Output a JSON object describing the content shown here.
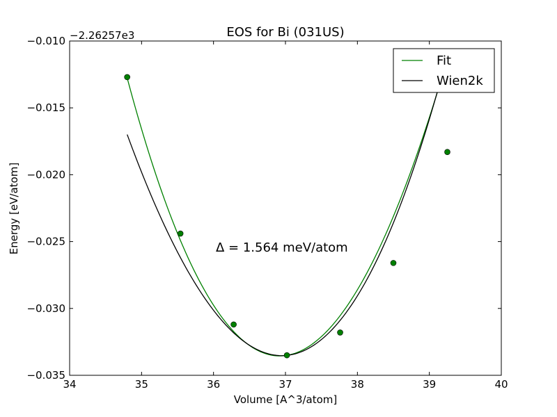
{
  "chart_data": {
    "type": "line",
    "title": "EOS for Bi (031US)",
    "xlabel": "Volume [A^3/atom]",
    "ylabel": "Energy [eV/atom]",
    "y_offset_label": "−2.26257e3",
    "xlim": [
      34,
      40
    ],
    "ylim": [
      -0.035,
      -0.01
    ],
    "x_ticks": [
      34,
      35,
      36,
      37,
      38,
      39,
      40
    ],
    "x_tick_labels": [
      "34",
      "35",
      "36",
      "37",
      "38",
      "39",
      "40"
    ],
    "y_ticks": [
      -0.01,
      -0.015,
      -0.02,
      -0.025,
      -0.03,
      -0.035
    ],
    "y_tick_labels": [
      "−0.010",
      "−0.015",
      "−0.020",
      "−0.025",
      "−0.030",
      "−0.035"
    ],
    "grid": false,
    "legend_position": "top-right",
    "annotation": "Δ = 1.564 meV/atom",
    "series": [
      {
        "name": "Fit",
        "color": "#008000",
        "kind": "curve",
        "V0": 36.92,
        "E0": -0.03355,
        "a": 0.00437,
        "b": -0.00012,
        "x_range": [
          34.8,
          39.25
        ]
      },
      {
        "name": "Wien2k",
        "color": "#000000",
        "kind": "curve",
        "V0": 36.95,
        "E0": -0.03353,
        "a": 0.0039,
        "b": 0.00015,
        "x_range": [
          34.8,
          39.25
        ]
      }
    ],
    "points": {
      "color": "#008000",
      "x": [
        34.8,
        35.54,
        36.28,
        37.02,
        37.76,
        38.5,
        39.25
      ],
      "y": [
        -0.0127,
        -0.0244,
        -0.0312,
        -0.0335,
        -0.0318,
        -0.0266,
        -0.0183
      ]
    }
  }
}
